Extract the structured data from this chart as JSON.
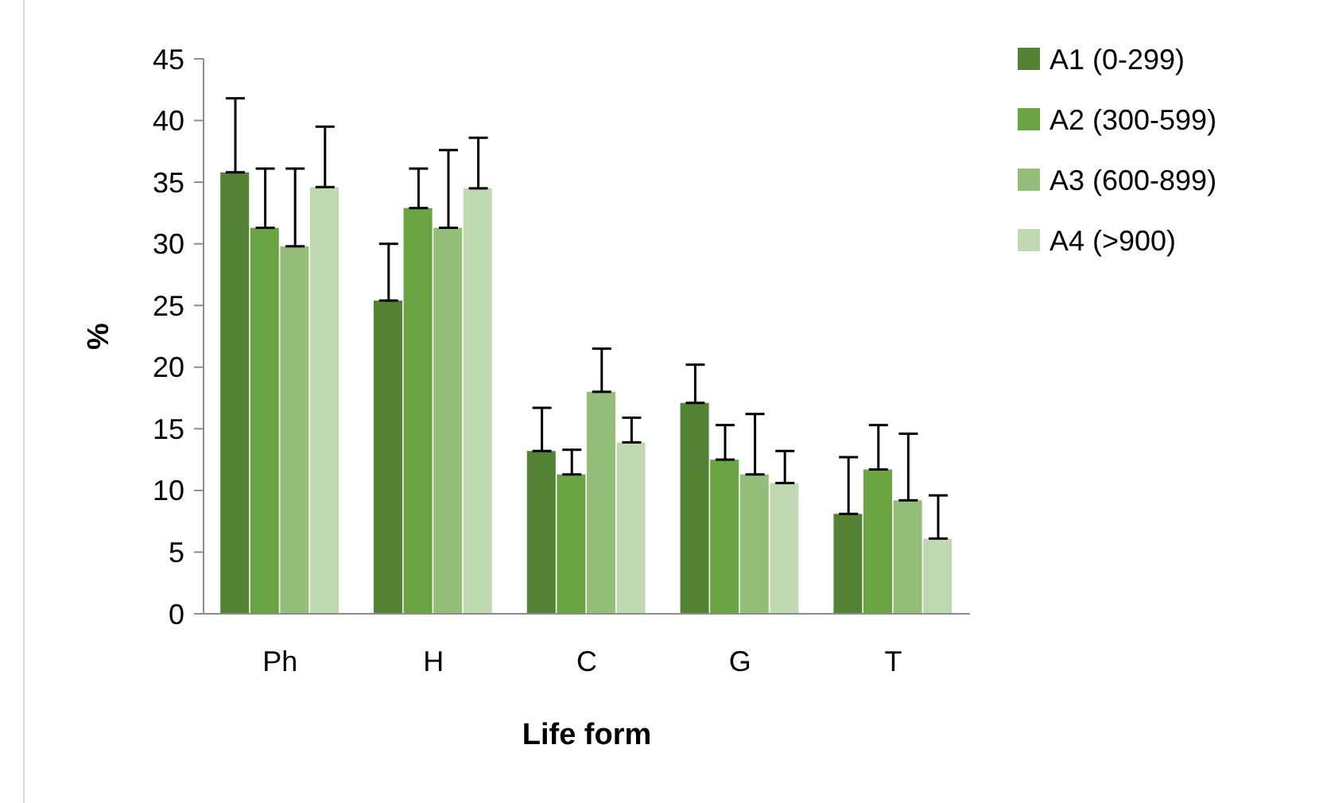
{
  "chart_data": {
    "type": "bar",
    "xlabel": "Life form",
    "ylabel": "%",
    "categories": [
      "Ph",
      "H",
      "C",
      "G",
      "T"
    ],
    "ylim": [
      0,
      45
    ],
    "yticks": [
      0,
      5,
      10,
      15,
      20,
      25,
      30,
      35,
      40,
      45
    ],
    "grid": false,
    "legend": "top right",
    "series": [
      {
        "name": "A1 (0-299)",
        "color": "#548235",
        "values": [
          35.8,
          25.4,
          13.2,
          17.1,
          8.1
        ],
        "errors": [
          [
            35.8,
            41.8
          ],
          [
            25.4,
            30.0
          ],
          [
            13.2,
            16.7
          ],
          [
            17.1,
            20.2
          ],
          [
            8.1,
            12.7
          ]
        ]
      },
      {
        "name": "A2 (300-599)",
        "color": "#6aa342",
        "values": [
          31.3,
          32.9,
          11.3,
          12.5,
          11.7
        ],
        "errors": [
          [
            31.3,
            36.1
          ],
          [
            32.9,
            36.1
          ],
          [
            11.3,
            13.3
          ],
          [
            12.5,
            15.3
          ],
          [
            11.7,
            15.3
          ]
        ]
      },
      {
        "name": "A3 (600-899)",
        "color": "#93bd78",
        "values": [
          29.8,
          31.3,
          18.0,
          11.3,
          9.2
        ],
        "errors": [
          [
            29.8,
            36.1
          ],
          [
            31.3,
            37.6
          ],
          [
            18.0,
            21.5
          ],
          [
            11.3,
            16.2
          ],
          [
            9.2,
            14.6
          ]
        ]
      },
      {
        "name": "A4 (>900)",
        "color": "#c0d9b3",
        "values": [
          34.6,
          34.5,
          13.9,
          10.6,
          6.1
        ],
        "errors": [
          [
            34.6,
            39.5
          ],
          [
            34.5,
            38.6
          ],
          [
            13.9,
            15.9
          ],
          [
            10.6,
            13.2
          ],
          [
            6.1,
            9.6
          ]
        ]
      }
    ]
  }
}
